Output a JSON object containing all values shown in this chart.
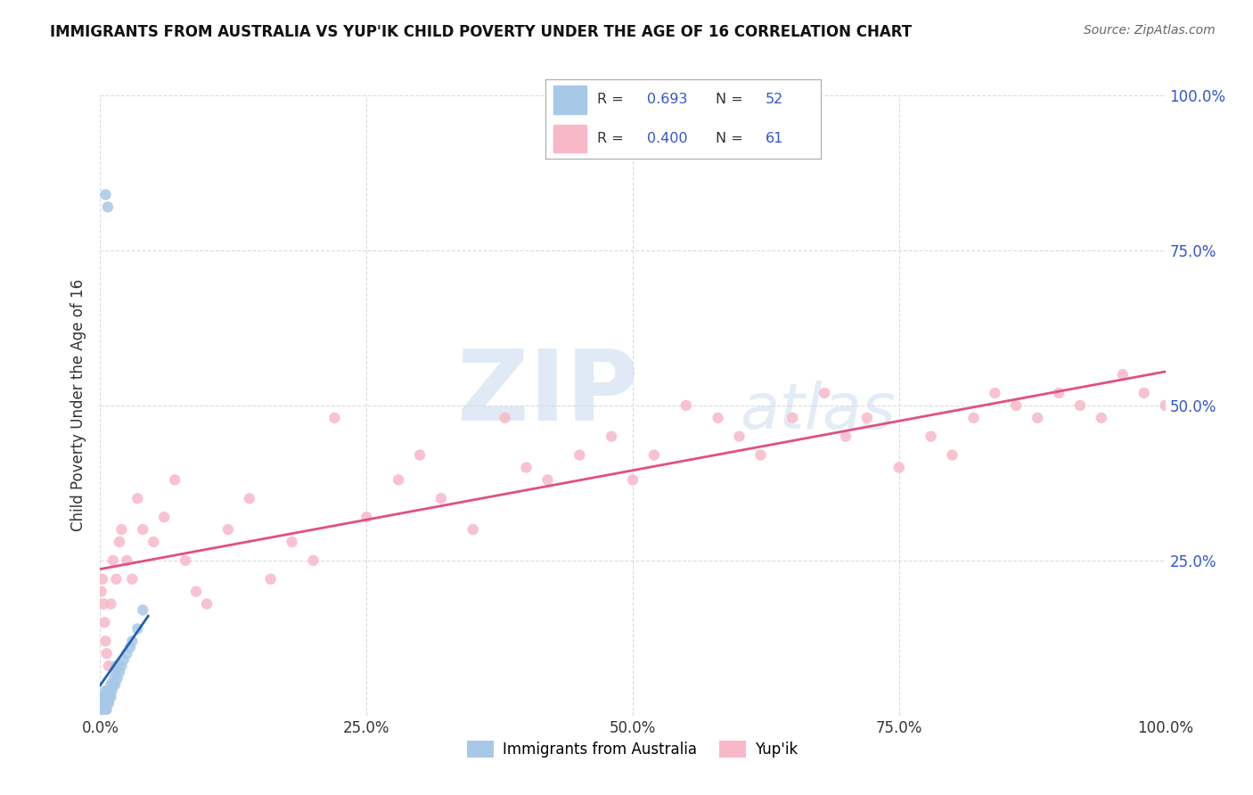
{
  "title": "IMMIGRANTS FROM AUSTRALIA VS YUP'IK CHILD POVERTY UNDER THE AGE OF 16 CORRELATION CHART",
  "source": "Source: ZipAtlas.com",
  "ylabel": "Child Poverty Under the Age of 16",
  "legend_labels": [
    "Immigrants from Australia",
    "Yup'ik"
  ],
  "blue_scatter_color": "#a8c8e8",
  "pink_scatter_color": "#f9b8c8",
  "blue_line_color": "#2060b0",
  "pink_line_color": "#e05080",
  "right_tick_color": "#3355cc",
  "background_color": "#ffffff",
  "grid_color": "#cccccc",
  "aus_x": [
    0.001,
    0.001,
    0.001,
    0.001,
    0.002,
    0.002,
    0.002,
    0.002,
    0.002,
    0.003,
    0.003,
    0.003,
    0.003,
    0.003,
    0.004,
    0.004,
    0.004,
    0.004,
    0.005,
    0.005,
    0.005,
    0.005,
    0.006,
    0.006,
    0.006,
    0.007,
    0.007,
    0.007,
    0.008,
    0.008,
    0.008,
    0.009,
    0.009,
    0.01,
    0.01,
    0.011,
    0.012,
    0.013,
    0.014,
    0.015,
    0.015,
    0.016,
    0.018,
    0.02,
    0.022,
    0.025,
    0.028,
    0.03,
    0.035,
    0.04,
    0.005,
    0.007
  ],
  "aus_y": [
    0.01,
    0.02,
    0.01,
    0.03,
    0.01,
    0.02,
    0.03,
    0.01,
    0.02,
    0.01,
    0.02,
    0.01,
    0.03,
    0.02,
    0.01,
    0.02,
    0.03,
    0.01,
    0.01,
    0.02,
    0.03,
    0.04,
    0.02,
    0.03,
    0.01,
    0.02,
    0.03,
    0.04,
    0.02,
    0.03,
    0.04,
    0.03,
    0.04,
    0.03,
    0.05,
    0.04,
    0.05,
    0.06,
    0.05,
    0.07,
    0.08,
    0.06,
    0.07,
    0.08,
    0.09,
    0.1,
    0.11,
    0.12,
    0.14,
    0.17,
    0.84,
    0.82
  ],
  "yupik_x": [
    0.001,
    0.002,
    0.003,
    0.004,
    0.005,
    0.006,
    0.008,
    0.01,
    0.012,
    0.015,
    0.018,
    0.02,
    0.025,
    0.03,
    0.035,
    0.04,
    0.05,
    0.06,
    0.07,
    0.08,
    0.09,
    0.1,
    0.12,
    0.14,
    0.16,
    0.18,
    0.2,
    0.22,
    0.25,
    0.28,
    0.3,
    0.32,
    0.35,
    0.38,
    0.4,
    0.42,
    0.45,
    0.48,
    0.5,
    0.52,
    0.55,
    0.58,
    0.6,
    0.62,
    0.65,
    0.68,
    0.7,
    0.72,
    0.75,
    0.78,
    0.8,
    0.82,
    0.84,
    0.86,
    0.88,
    0.9,
    0.92,
    0.94,
    0.96,
    0.98,
    1.0
  ],
  "yupik_y": [
    0.2,
    0.22,
    0.18,
    0.15,
    0.12,
    0.1,
    0.08,
    0.18,
    0.25,
    0.22,
    0.28,
    0.3,
    0.25,
    0.22,
    0.35,
    0.3,
    0.28,
    0.32,
    0.38,
    0.25,
    0.2,
    0.18,
    0.3,
    0.35,
    0.22,
    0.28,
    0.25,
    0.48,
    0.32,
    0.38,
    0.42,
    0.35,
    0.3,
    0.48,
    0.4,
    0.38,
    0.42,
    0.45,
    0.38,
    0.42,
    0.5,
    0.48,
    0.45,
    0.42,
    0.48,
    0.52,
    0.45,
    0.48,
    0.4,
    0.45,
    0.42,
    0.48,
    0.52,
    0.5,
    0.48,
    0.52,
    0.5,
    0.48,
    0.55,
    0.52,
    0.5
  ],
  "xlim": [
    0.0,
    1.0
  ],
  "ylim": [
    0.0,
    1.0
  ],
  "xticks": [
    0.0,
    0.25,
    0.5,
    0.75,
    1.0
  ],
  "yticks_right": [
    0.25,
    0.5,
    0.75,
    1.0
  ],
  "xticklabels": [
    "0.0%",
    "25.0%",
    "50.0%",
    "75.0%",
    "100.0%"
  ],
  "yticklabels_right": [
    "25.0%",
    "50.0%",
    "75.0%",
    "100.0%"
  ]
}
